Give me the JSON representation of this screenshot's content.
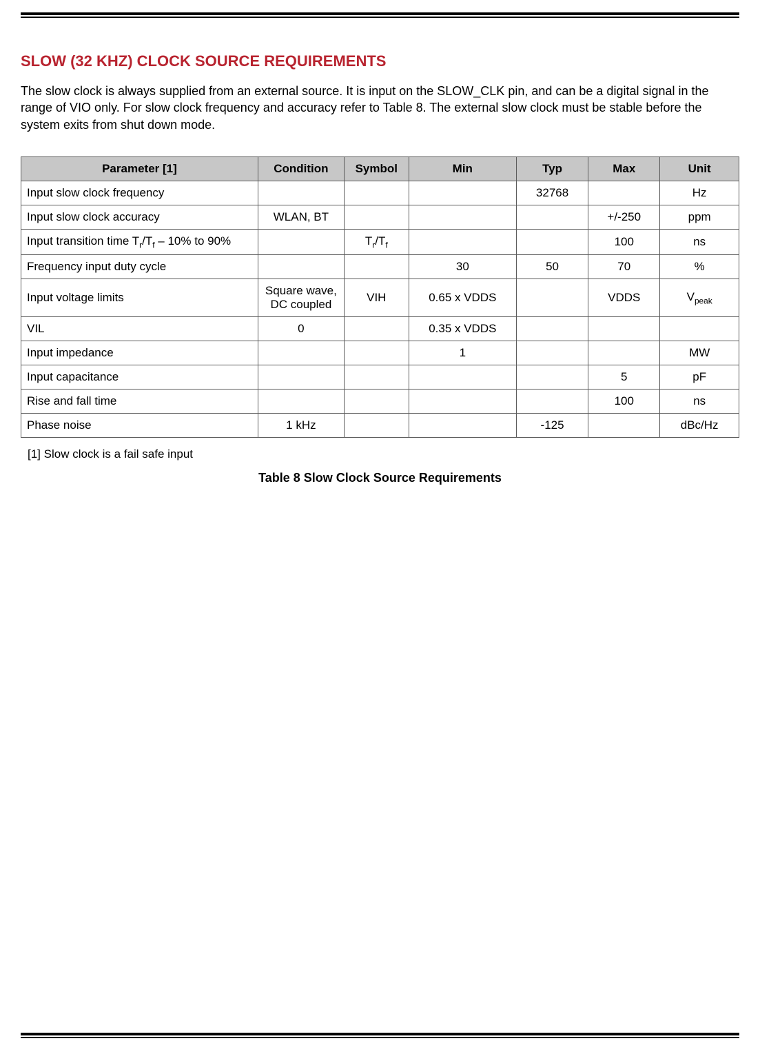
{
  "colors": {
    "page_background": "#ffffff",
    "text": "#000000",
    "rule": "#000000",
    "section_title": "#b8232f",
    "table_border": "#5a5a5a",
    "header_bg": "#c7c7c7"
  },
  "section_title": "SLOW (32 KHZ) CLOCK SOURCE REQUIREMENTS",
  "intro_text": "The slow clock is always supplied from an external source.  It is input on the SLOW_CLK pin, and can be a digital signal in the range of VIO only.  For slow clock frequency and accuracy refer to Table 8.  The external slow clock must be stable before the system exits from shut down mode.",
  "table": {
    "type": "table",
    "col_widths_pct": [
      33,
      12,
      9,
      15,
      10,
      10,
      11
    ],
    "header_alignment": "center",
    "columns": [
      "Parameter [1]",
      "Condition",
      "Symbol",
      "Min",
      "Typ",
      "Max",
      "Unit"
    ],
    "rows": [
      {
        "parameter": "Input slow clock frequency",
        "condition": "",
        "symbol": "",
        "min": "",
        "typ": "32768",
        "max": "",
        "unit": "Hz"
      },
      {
        "parameter": "Input slow clock accuracy",
        "condition": "WLAN, BT",
        "symbol": "",
        "min": "",
        "typ": "",
        "max": "+/-250",
        "unit": "ppm"
      },
      {
        "parameter": "Input transition time T_r/T_f – 10% to 90%",
        "condition": "",
        "symbol": "T_r/T_f",
        "min": "",
        "typ": "",
        "max": "100",
        "unit": "ns"
      },
      {
        "parameter": "Frequency input duty cycle",
        "condition": "",
        "symbol": "",
        "min": "30",
        "typ": "50",
        "max": "70",
        "unit": "%"
      },
      {
        "parameter": "Input voltage limits",
        "condition": "Square wave, DC coupled",
        "symbol": "VIH",
        "min": "0.65 x VDDS",
        "typ": "",
        "max": "VDDS",
        "unit": "V_peak"
      },
      {
        "parameter": "VIL",
        "condition": "0",
        "symbol": "",
        "min": "0.35 x VDDS",
        "typ": "",
        "max": "",
        "unit": ""
      },
      {
        "parameter": "Input impedance",
        "condition": "",
        "symbol": "",
        "min": "1",
        "typ": "",
        "max": "",
        "unit": "MW"
      },
      {
        "parameter": "Input capacitance",
        "condition": "",
        "symbol": "",
        "min": "",
        "typ": "",
        "max": "5",
        "unit": "pF"
      },
      {
        "parameter": "Rise and fall time",
        "condition": "",
        "symbol": "",
        "min": "",
        "typ": "",
        "max": "100",
        "unit": "ns"
      },
      {
        "parameter": "Phase noise",
        "condition": "1 kHz",
        "symbol": "",
        "min": "",
        "typ": "-125",
        "max": "",
        "unit": "dBc/Hz"
      }
    ]
  },
  "footnote": "[1] Slow clock is a fail safe input",
  "caption": "Table 8 Slow Clock Source Requirements"
}
